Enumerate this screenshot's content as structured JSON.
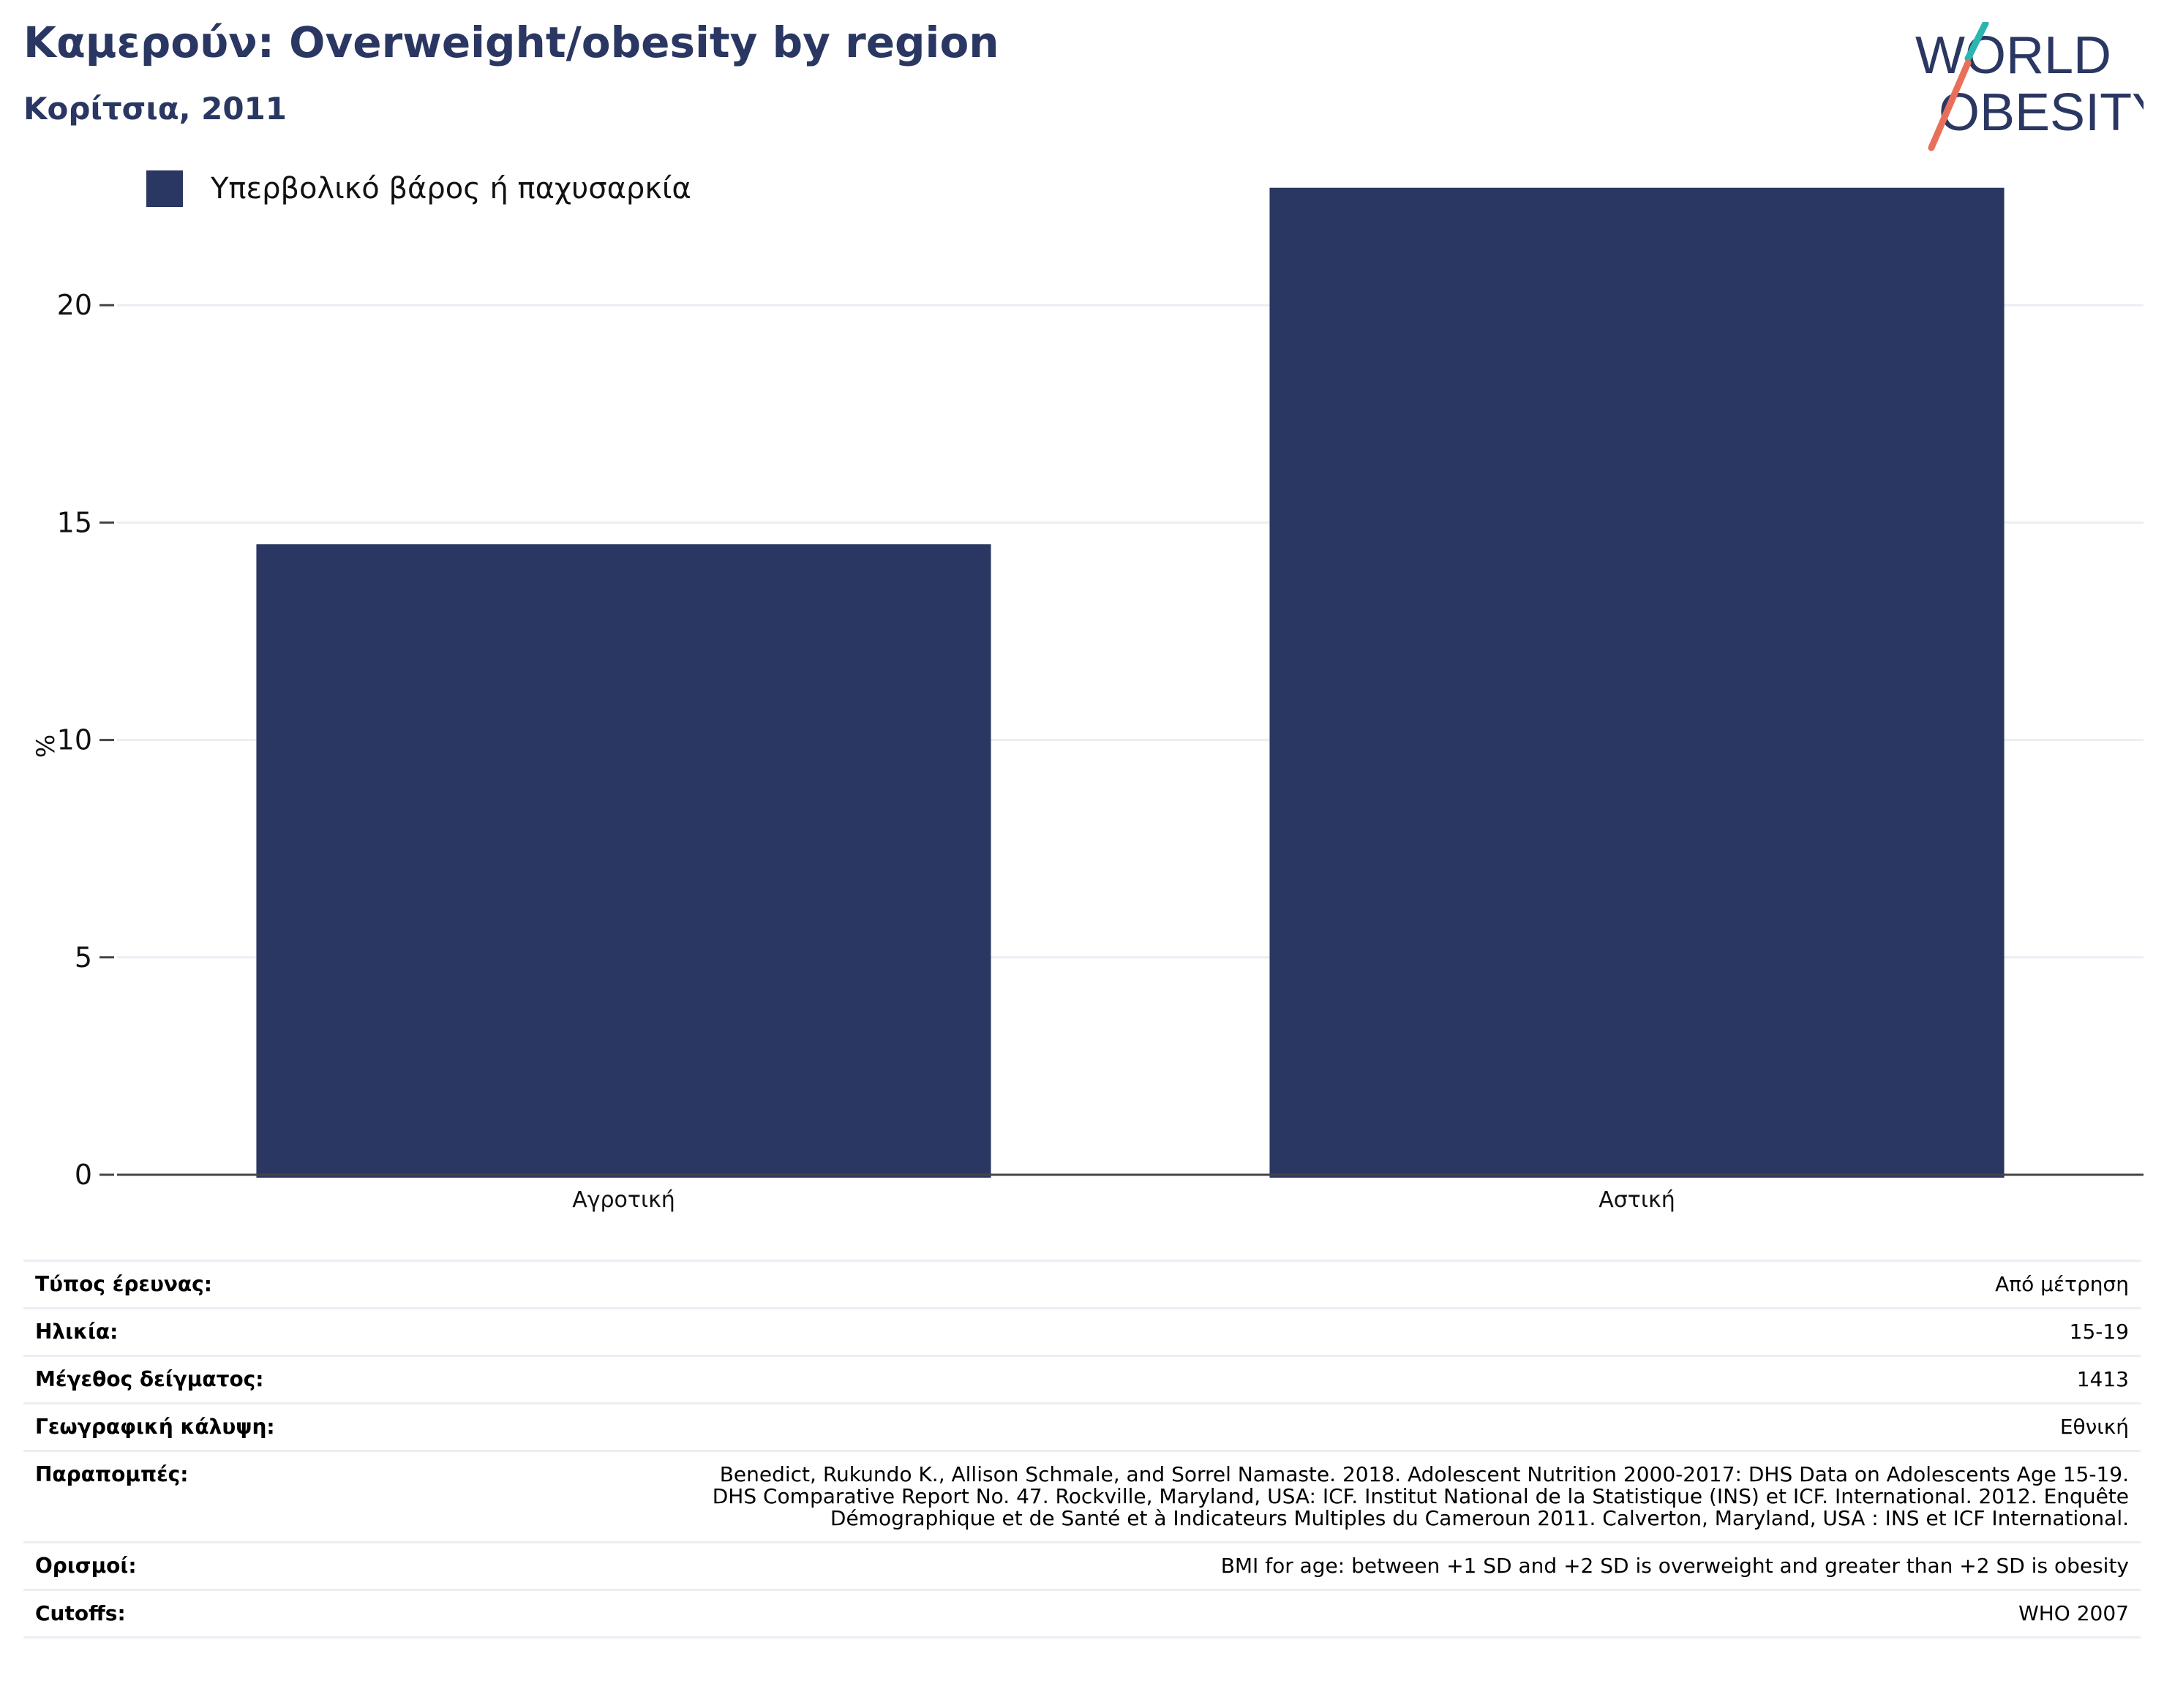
{
  "header": {
    "title": "Καμερούν: Overweight/obesity by region",
    "subtitle": "Κορίτσια, 2011"
  },
  "logo": {
    "line1": "WORLD",
    "line2": "OBESITY"
  },
  "colors": {
    "brand": "#2a3762",
    "accent_teal": "#2bb5b0",
    "accent_red": "#e8705a",
    "grid": "#eceef5"
  },
  "chart_data": {
    "type": "bar",
    "title": "Καμερούν: Overweight/obesity by region",
    "subtitle": "Κορίτσια, 2011",
    "categories": [
      "Αγροτική",
      "Αστική"
    ],
    "series": [
      {
        "name": "Υπερβολικό βάρος ή παχυσαρκία",
        "color": "#2a3762",
        "values": [
          14.5,
          22.7
        ]
      }
    ],
    "xlabel": "",
    "ylabel": "%",
    "ylim": [
      0,
      25
    ],
    "yticks": [
      0,
      5,
      10,
      15,
      20
    ],
    "grid": true,
    "legend_position": "top-left"
  },
  "info": {
    "rows": [
      {
        "key": "Τύπος έρευνας:",
        "value": "Από μέτρηση"
      },
      {
        "key": "Ηλικία:",
        "value": "15-19"
      },
      {
        "key": "Μέγεθος δείγματος:",
        "value": "1413"
      },
      {
        "key": "Γεωγραφική κάλυψη:",
        "value": "Εθνική"
      },
      {
        "key": "Παραπομπές:",
        "value_lines": [
          "Benedict, Rukundo K., Allison Schmale, and Sorrel Namaste. 2018. Adolescent Nutrition 2000-2017: DHS Data on Adolescents Age 15-19.",
          "DHS Comparative Report No. 47. Rockville, Maryland, USA: ICF. Institut National de la Statistique (INS) et ICF. International. 2012. Enquête",
          "Démographique et de Santé et à Indicateurs Multiples du Cameroun 2011. Calverton, Maryland, USA : INS et ICF International."
        ]
      },
      {
        "key": "Ορισμοί:",
        "value": "BMI for age: between +1 SD and +2 SD is overweight and greater than +2 SD is obesity"
      },
      {
        "key": "Cutoffs:",
        "value": "WHO 2007"
      }
    ]
  }
}
